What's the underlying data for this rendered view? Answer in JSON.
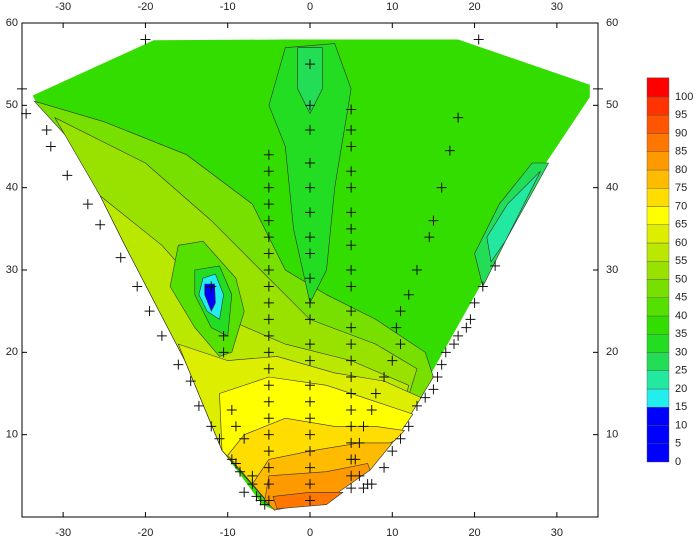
{
  "chart_data": {
    "type": "contour",
    "xlim": [
      -35,
      35
    ],
    "ylim": [
      0,
      60
    ],
    "xticks": [
      -30,
      -20,
      -10,
      0,
      10,
      20,
      30
    ],
    "yticks": [
      10,
      20,
      30,
      40,
      50,
      60
    ],
    "hull": {
      "x": [
        -33.7,
        -19,
        -3,
        18,
        34,
        34,
        28,
        23.8,
        14.6,
        10.3,
        7.3,
        2,
        -4.3,
        -5.8,
        -10.7,
        -15.2,
        -22.5,
        -25.5,
        -29.2,
        -33.4
      ],
      "y": [
        51.2,
        57.9,
        58,
        58,
        52.5,
        51,
        42,
        33.6,
        17.2,
        9.3,
        5.7,
        2,
        0.85,
        1.5,
        8.1,
        19,
        33,
        39,
        45.8,
        50.6
      ]
    },
    "regions": [
      {
        "z": 47,
        "x": [
          -33.5,
          -25,
          -15,
          -7,
          -3,
          2,
          8,
          14,
          15,
          10.3,
          -4.3,
          -10.7,
          -15.2,
          -22.5,
          -25.5,
          -29.2
        ],
        "y": [
          50.5,
          48,
          44,
          38,
          30,
          27,
          24,
          20,
          17,
          9.3,
          0.85,
          8.1,
          19,
          33,
          39,
          45.8
        ]
      },
      {
        "z": 52,
        "x": [
          -31,
          -20,
          -12,
          -6,
          0,
          8,
          13,
          10.3,
          -4.3,
          -10.7,
          -15.2,
          -22.5,
          -25.5
        ],
        "y": [
          48.5,
          43,
          36,
          30,
          24,
          21,
          18,
          9.3,
          0.85,
          8.1,
          19,
          33,
          39
        ]
      },
      {
        "z": 57,
        "x": [
          -25.5,
          -18,
          -10,
          -3,
          5,
          12,
          10.3,
          -4.3,
          -10.7,
          -15.2,
          -22.5
        ],
        "y": [
          39,
          33,
          24,
          21,
          19,
          16,
          9.3,
          0.85,
          8.1,
          19,
          33
        ]
      },
      {
        "z": 62,
        "x": [
          -16,
          -10,
          -4,
          3,
          9,
          13.5,
          10.3,
          -4.3,
          -10.7,
          -15.2
        ],
        "y": [
          21,
          19,
          19.5,
          17.5,
          16.5,
          14.5,
          9.3,
          0.85,
          8.1,
          19
        ]
      },
      {
        "z": 67,
        "x": [
          -11,
          -5,
          2,
          8,
          12.5,
          10.3,
          -4.3,
          -10.7
        ],
        "y": [
          15,
          17,
          16,
          14,
          12.5,
          9.3,
          0.85,
          8.1
        ]
      },
      {
        "z": 72,
        "x": [
          -8,
          -3,
          3,
          8,
          11.5,
          10.3,
          -4.3,
          -10
        ],
        "y": [
          10,
          12,
          11,
          11,
          10.5,
          9.3,
          0.85,
          7.5
        ]
      },
      {
        "z": 77,
        "x": [
          -5,
          0,
          6,
          10,
          7.3,
          -4.3,
          -7
        ],
        "y": [
          7,
          8,
          9,
          9,
          5.7,
          0.85,
          4
        ]
      },
      {
        "z": 82,
        "x": [
          -5,
          2,
          7,
          7.3,
          2,
          -4.3,
          -5.5
        ],
        "y": [
          5,
          5.5,
          6.5,
          5.7,
          2,
          0.85,
          2
        ]
      },
      {
        "z": 87,
        "x": [
          -4.5,
          0,
          4,
          2,
          -4
        ],
        "y": [
          2.5,
          3,
          3,
          1.5,
          1
        ]
      },
      {
        "z": 33,
        "x": [
          -5,
          -3,
          3,
          5,
          3,
          2,
          0,
          -2,
          -3
        ],
        "y": [
          50,
          57,
          57.5,
          52,
          40,
          30,
          26,
          35,
          45
        ]
      },
      {
        "z": 28,
        "x": [
          -1.5,
          1.5,
          1.5,
          0,
          -1.5
        ],
        "y": [
          57,
          57,
          52,
          49,
          52
        ]
      },
      {
        "z": 27,
        "x": [
          29,
          23.8,
          21,
          20,
          23,
          27
        ],
        "y": [
          43,
          33.6,
          28,
          32,
          38,
          43
        ]
      },
      {
        "z": 22,
        "x": [
          28,
          23.8,
          22,
          21.5,
          24
        ],
        "y": [
          42,
          33.6,
          31,
          34,
          38
        ]
      },
      {
        "z": 42,
        "x": [
          -16,
          -13,
          -9,
          -8,
          -9.5,
          -11,
          -14,
          -17
        ],
        "y": [
          33,
          33.5,
          29,
          25,
          20,
          19.5,
          23,
          28
        ]
      },
      {
        "z": 32,
        "x": [
          -14,
          -11,
          -9.5,
          -10,
          -12,
          -14
        ],
        "y": [
          30,
          30.5,
          27,
          22,
          23,
          27
        ]
      },
      {
        "z": 17,
        "x": [
          -13,
          -11.5,
          -10.5,
          -11,
          -12.5,
          -13.5
        ],
        "y": [
          29,
          29.5,
          27,
          24,
          25,
          27
        ]
      },
      {
        "z": 12,
        "x": [
          -12.8,
          -11.6,
          -11.5,
          -12,
          -12.8
        ],
        "y": [
          28.3,
          28.3,
          26,
          25,
          27
        ]
      }
    ],
    "points": {
      "x": [
        -34.5,
        -32,
        -31.5,
        -29.5,
        -27,
        -25.5,
        -23,
        -21,
        -19.5,
        -18,
        -16,
        -14.5,
        -13.5,
        -12,
        -11,
        -9.5,
        -8.5,
        -7,
        -6.5,
        -5.5,
        -5,
        -5,
        -5,
        -5,
        -5,
        -5,
        -5,
        -5,
        -5,
        -5,
        -5,
        -5,
        -5,
        -5,
        -5,
        -5,
        -5,
        -5,
        -5,
        -5,
        -5,
        -5,
        0,
        0,
        0,
        0,
        0,
        0,
        0,
        0,
        0,
        0,
        0,
        0,
        0,
        0,
        0,
        0,
        0,
        0,
        0,
        0,
        0,
        5,
        5,
        5,
        5,
        5,
        5,
        5,
        5,
        5,
        5,
        5,
        5,
        5,
        5,
        5,
        5,
        5,
        5,
        5,
        5,
        5,
        5,
        -20,
        20.5,
        18,
        17,
        16,
        15,
        14.5,
        13,
        12,
        11,
        10.5,
        11,
        10,
        9,
        8,
        7.5,
        6.5,
        6,
        5.5,
        6,
        7,
        -10.5,
        -10.5,
        -9.5,
        -9,
        -8,
        -9,
        -7,
        -8,
        -6,
        -12,
        22.5,
        21,
        20,
        19.5,
        19,
        18,
        17.5,
        16.5,
        16,
        15.5,
        15,
        14,
        13,
        12,
        11,
        10,
        9,
        7.5,
        6.5,
        -35,
        35
      ],
      "y": [
        49,
        47,
        45,
        41.5,
        38,
        35.5,
        31.5,
        28,
        25,
        22,
        18.5,
        16.5,
        13.5,
        11,
        9.5,
        7,
        5.5,
        4,
        2.5,
        1.5,
        44,
        42,
        40,
        38,
        36,
        34,
        32,
        30,
        28,
        26,
        24,
        22,
        20,
        18,
        16,
        14,
        12,
        10,
        8,
        6,
        4,
        2,
        55,
        50,
        47,
        43,
        40,
        37,
        34,
        32,
        29,
        26,
        24,
        21,
        19,
        16,
        14,
        12,
        10,
        8,
        6,
        4,
        2,
        49.5,
        47,
        45,
        42,
        40,
        37,
        35,
        33,
        30,
        28,
        25,
        23,
        21,
        19,
        17,
        15,
        13,
        11,
        9,
        7,
        5,
        3.5,
        58,
        58,
        48.5,
        44.5,
        40,
        36,
        34,
        30,
        27,
        25,
        23,
        21,
        19,
        17,
        15,
        13,
        11,
        9,
        7,
        5,
        4,
        20,
        22,
        13,
        11,
        9.5,
        6.5,
        5,
        3,
        2,
        28,
        30.5,
        28,
        26,
        24,
        23,
        22,
        21,
        20,
        18.5,
        17,
        15.5,
        14.5,
        13.5,
        11,
        9.5,
        8,
        6,
        4,
        3.5,
        52,
        52
      ]
    },
    "colorbar": {
      "levels": [
        0,
        5,
        10,
        15,
        20,
        25,
        30,
        35,
        40,
        45,
        50,
        55,
        60,
        65,
        70,
        75,
        80,
        85,
        90,
        95,
        100
      ],
      "colors": [
        "#0000ff",
        "#0000ff",
        "#0000ff",
        "#22eeee",
        "#22e8a0",
        "#22dd55",
        "#22dd22",
        "#33dd00",
        "#55e000",
        "#77e000",
        "#99e200",
        "#bbe800",
        "#ddee00",
        "#ffff00",
        "#ffdd00",
        "#ffbb00",
        "#ff9900",
        "#ff7700",
        "#ff5500",
        "#ff3300",
        "#ff0000"
      ]
    }
  }
}
